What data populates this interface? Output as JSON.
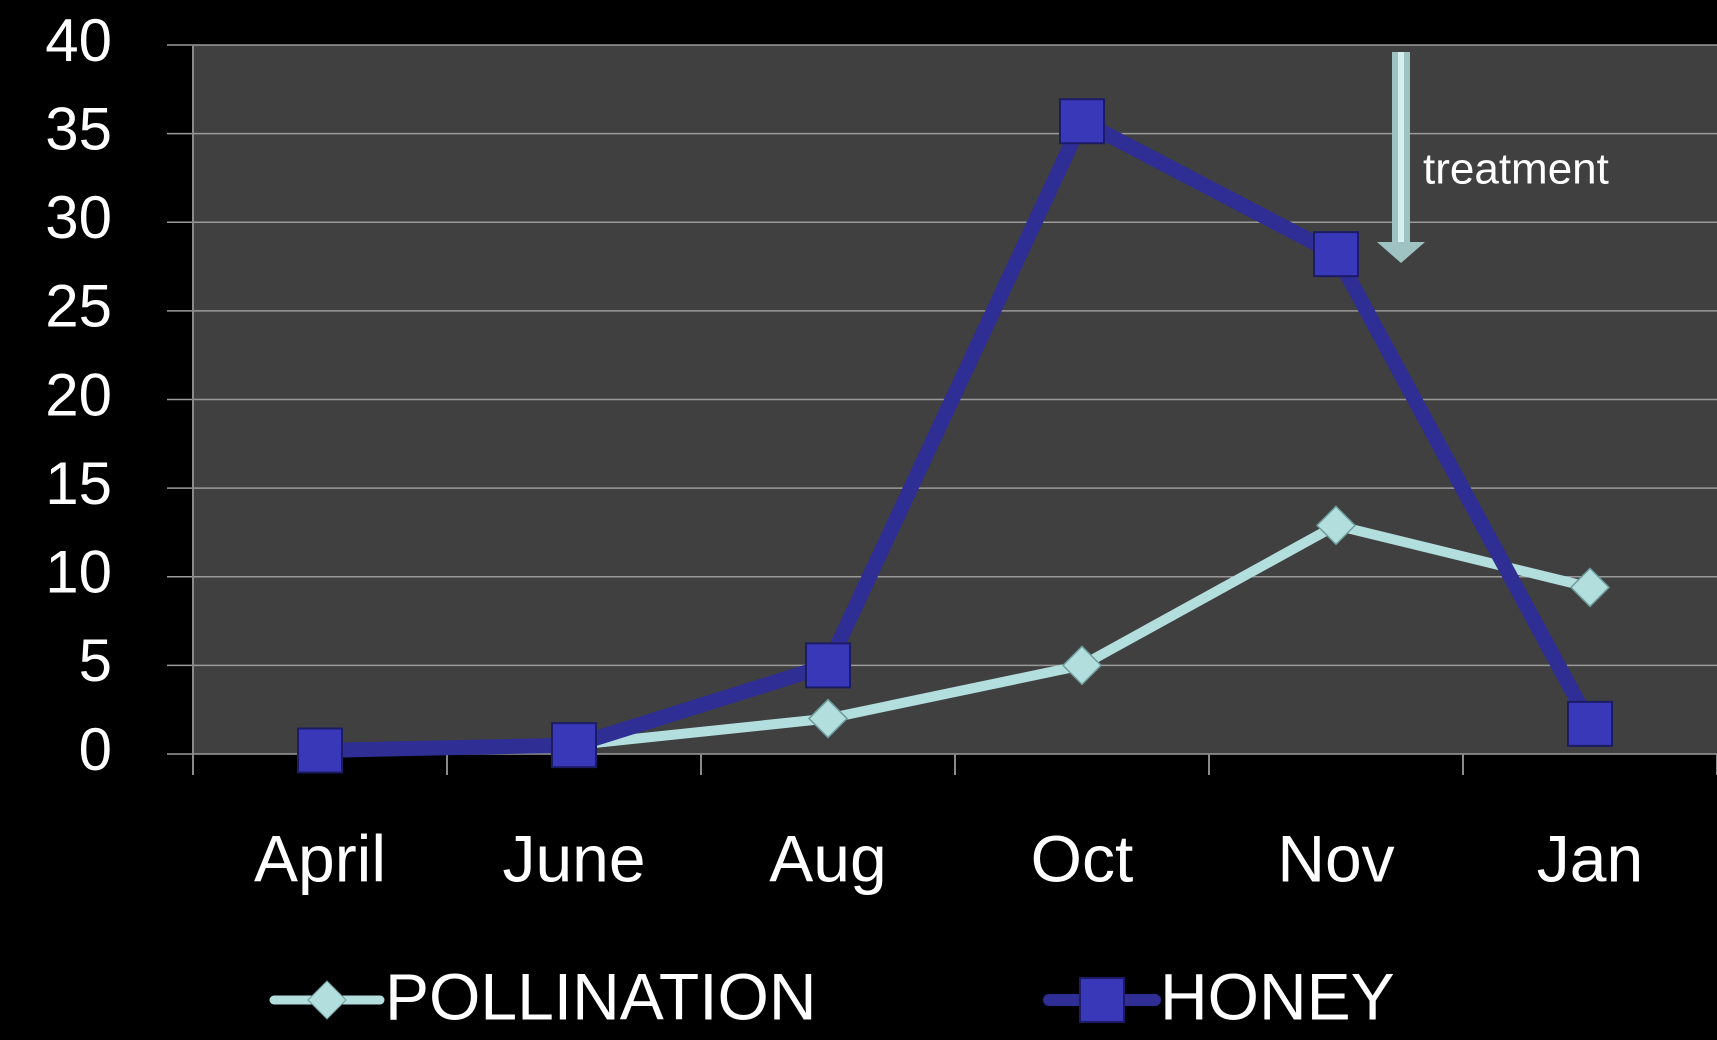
{
  "chart_data": {
    "type": "line",
    "categories": [
      "April",
      "June",
      "Aug",
      "Oct",
      "Nov",
      "Jan"
    ],
    "series": [
      {
        "name": "POLLINATION",
        "color": "#b3dede",
        "marker": "diamond",
        "values": [
          0.2,
          0.5,
          2,
          5,
          12.9,
          9.4
        ]
      },
      {
        "name": "HONEY",
        "color": "#2e2e94",
        "marker": "square",
        "values": [
          0.2,
          0.5,
          5,
          35.7,
          28.2,
          1.7
        ]
      }
    ],
    "ylim": [
      0,
      40
    ],
    "yticks": [
      0,
      5,
      10,
      15,
      20,
      25,
      30,
      35,
      40
    ],
    "grid": true,
    "legend": "bottom",
    "annotations": [
      {
        "text": "treatment"
      }
    ]
  }
}
